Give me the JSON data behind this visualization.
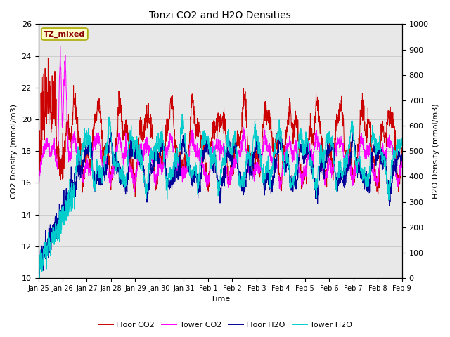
{
  "title": "Tonzi CO2 and H2O Densities",
  "xlabel": "Time",
  "ylabel_left": "CO2 Density (mmol/m3)",
  "ylabel_right": "H2O Density (mmol/m3)",
  "annotation": "TZ_mixed",
  "annotation_color": "#8B0000",
  "annotation_bg": "#FFFFCC",
  "ylim_left": [
    10,
    26
  ],
  "ylim_right": [
    0,
    1000
  ],
  "yticks_left": [
    10,
    12,
    14,
    16,
    18,
    20,
    22,
    24,
    26
  ],
  "yticks_right": [
    0,
    100,
    200,
    300,
    400,
    500,
    600,
    700,
    800,
    900,
    1000
  ],
  "colors": {
    "floor_co2": "#CC0000",
    "tower_co2": "#FF00FF",
    "floor_h2o": "#000099",
    "tower_h2o": "#00CCCC"
  },
  "legend_labels": [
    "Floor CO2",
    "Tower CO2",
    "Floor H2O",
    "Tower H2O"
  ],
  "grid_color": "#C8C8C8",
  "bg_color": "#E8E8E8",
  "n_days": 15,
  "n_points": 2160,
  "seed": 42,
  "xtick_labels": [
    "Jan 25",
    "Jan 26",
    "Jan 27",
    "Jan 28",
    "Jan 29",
    "Jan 30",
    "Jan 31",
    "Feb 1",
    "Feb 2",
    "Feb 3",
    "Feb 4",
    "Feb 5",
    "Feb 6",
    "Feb 7",
    "Feb 8",
    "Feb 9"
  ]
}
